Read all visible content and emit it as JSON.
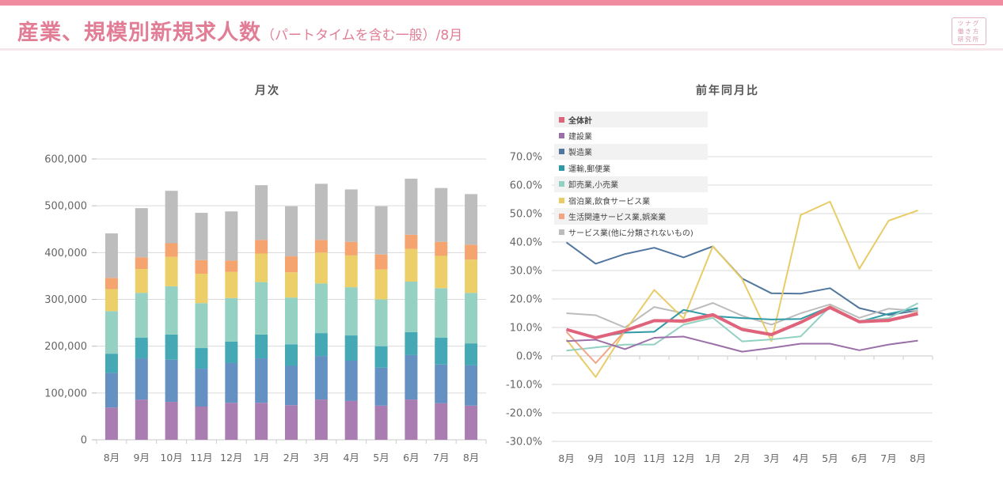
{
  "header": {
    "title_main": "産業、規模別新規求人数",
    "title_sub": "（パートタイムを含む一般）",
    "title_month": "/8月",
    "logo_lines": [
      "ツナグ",
      "働き方",
      "研究所"
    ]
  },
  "colors": {
    "accent": "#f18ba0",
    "title": "#e27d96"
  },
  "chart_data": [
    {
      "type": "bar",
      "stacked": true,
      "title": "月次",
      "xlabel": "",
      "ylabel": "",
      "ylim": [
        0,
        600000
      ],
      "yticks": [
        0,
        100000,
        200000,
        300000,
        400000,
        500000,
        600000
      ],
      "ytick_labels": [
        "0",
        "100,000",
        "200,000",
        "300,000",
        "400,000",
        "500,000",
        "600,000"
      ],
      "grid": true,
      "categories": [
        "8月",
        "9月",
        "10月",
        "11月",
        "12月",
        "1月",
        "2月",
        "3月",
        "4月",
        "5月",
        "6月",
        "7月",
        "8月"
      ],
      "series": [
        {
          "name": "建設業",
          "color": "#a97db1",
          "values": [
            69000,
            86000,
            81000,
            71000,
            79000,
            79000,
            74000,
            86000,
            83000,
            73000,
            86000,
            78000,
            73000
          ]
        },
        {
          "name": "製造業",
          "color": "#6490c2",
          "values": [
            74000,
            88000,
            90000,
            81000,
            85000,
            95000,
            84000,
            93000,
            86000,
            81000,
            95000,
            83000,
            86000
          ]
        },
        {
          "name": "運輸,郵便業",
          "color": "#45a8b5",
          "values": [
            41000,
            44000,
            54000,
            44000,
            46000,
            51000,
            46000,
            49000,
            54000,
            46000,
            49000,
            57000,
            47000
          ]
        },
        {
          "name": "卸売業,小売業",
          "color": "#94d1c3",
          "values": [
            91000,
            96000,
            103000,
            96000,
            93000,
            112000,
            100000,
            106000,
            103000,
            100000,
            108000,
            106000,
            108000
          ]
        },
        {
          "name": "宿泊業,飲食サービス業",
          "color": "#edcf6a",
          "values": [
            47000,
            51000,
            63000,
            63000,
            56000,
            61000,
            54000,
            66000,
            68000,
            64000,
            70000,
            69000,
            71000
          ]
        },
        {
          "name": "生活関連サービス業,娯楽業",
          "color": "#f5a36f",
          "values": [
            24000,
            25000,
            29000,
            29000,
            24000,
            29000,
            34000,
            27000,
            29000,
            32000,
            30000,
            30000,
            32000
          ]
        },
        {
          "name": "サービス業(他に分類されないもの)",
          "color": "#bdbdbd",
          "values": [
            95000,
            105000,
            112000,
            101000,
            105000,
            117000,
            107000,
            120000,
            112000,
            103000,
            120000,
            115000,
            108000
          ]
        }
      ]
    },
    {
      "type": "line",
      "title": "前年同月比",
      "xlabel": "",
      "ylabel": "",
      "ylim": [
        -0.3,
        0.7
      ],
      "yticks": [
        -0.3,
        -0.2,
        -0.1,
        0.0,
        0.1,
        0.2,
        0.3,
        0.4,
        0.5,
        0.6,
        0.7
      ],
      "ytick_labels": [
        "-30.0%",
        "-20.0%",
        "-10.0%",
        "0.0%",
        "10.0%",
        "20.0%",
        "30.0%",
        "40.0%",
        "50.0%",
        "60.0%",
        "70.0%"
      ],
      "grid": true,
      "legend_position": "top-left",
      "categories": [
        "8月",
        "9月",
        "10月",
        "11月",
        "12月",
        "1月",
        "2月",
        "3月",
        "4月",
        "5月",
        "6月",
        "7月",
        "8月"
      ],
      "series": [
        {
          "name": "全体計",
          "color": "#e0637c",
          "bold": true,
          "values": [
            0.093,
            0.064,
            0.089,
            0.124,
            0.123,
            0.145,
            0.093,
            0.075,
            0.118,
            0.17,
            0.12,
            0.125,
            0.148
          ]
        },
        {
          "name": "建設業",
          "color": "#9b6fa8",
          "values": [
            0.052,
            0.057,
            0.024,
            0.064,
            0.068,
            0.042,
            0.015,
            0.028,
            0.043,
            0.043,
            0.02,
            0.04,
            0.054
          ]
        },
        {
          "name": "製造業",
          "color": "#51769e",
          "values": [
            0.399,
            0.324,
            0.358,
            0.38,
            0.346,
            0.385,
            0.272,
            0.22,
            0.219,
            0.238,
            0.168,
            0.144,
            0.16
          ]
        },
        {
          "name": "運輸,郵便業",
          "color": "#2f9aa5",
          "values": [
            0.092,
            0.065,
            0.082,
            0.085,
            0.162,
            0.14,
            0.133,
            0.128,
            0.13,
            0.173,
            0.12,
            0.148,
            0.168
          ]
        },
        {
          "name": "卸売業,小売業",
          "color": "#93d0c4",
          "values": [
            0.019,
            0.03,
            0.04,
            0.04,
            0.11,
            0.134,
            0.051,
            0.058,
            0.069,
            0.173,
            0.123,
            0.133,
            0.185
          ]
        },
        {
          "name": "宿泊業,飲食サービス業",
          "color": "#e8cc67",
          "values": [
            0.058,
            -0.074,
            0.088,
            0.232,
            0.131,
            0.385,
            0.27,
            0.052,
            0.495,
            0.542,
            0.306,
            0.475,
            0.511
          ]
        },
        {
          "name": "生活関連サービス業,娯楽業",
          "color": "#f0a685",
          "values": [
            0.085,
            -0.025,
            0.088,
            0.125,
            0.118,
            0.14,
            0.096,
            0.077,
            0.118,
            0.175,
            0.12,
            0.121,
            0.155
          ]
        },
        {
          "name": "サービス業(他に分類されないもの)",
          "color": "#bcbcbc",
          "values": [
            0.15,
            0.143,
            0.1,
            0.172,
            0.15,
            0.186,
            0.141,
            0.11,
            0.15,
            0.181,
            0.134,
            0.166,
            0.158
          ]
        }
      ]
    }
  ]
}
